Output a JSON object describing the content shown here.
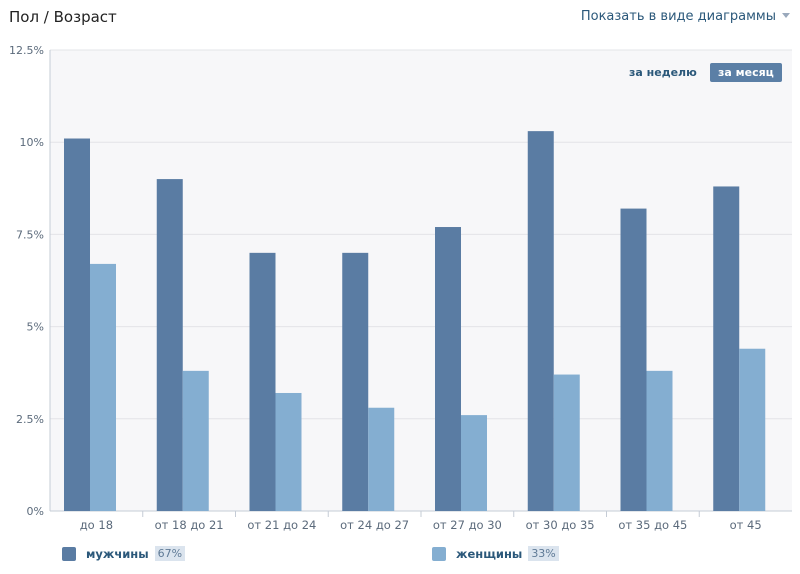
{
  "header": {
    "title": "Пол / Возраст",
    "view_toggle": "Показать в виде диаграммы"
  },
  "period": {
    "week": "за неделю",
    "month": "за месяц",
    "selected": "month"
  },
  "legend": {
    "men": {
      "label": "мужчины",
      "percent": "67%"
    },
    "women": {
      "label": "женщины",
      "percent": "33%"
    }
  },
  "colors": {
    "men": "#5a7ca3",
    "women": "#84aed1",
    "plot_bg": "#f7f7f9",
    "grid": "#e3e4e8",
    "tick": "#5b6a7b"
  },
  "chart_data": {
    "type": "bar",
    "categories": [
      "до 18",
      "от 18 до 21",
      "от 21 до 24",
      "от 24 до 27",
      "от 27 до 30",
      "от 30 до 35",
      "от 35 до 45",
      "от 45"
    ],
    "series": [
      {
        "name": "мужчины",
        "values": [
          10.1,
          9.0,
          7.0,
          7.0,
          7.7,
          10.3,
          8.2,
          8.8
        ]
      },
      {
        "name": "женщины",
        "values": [
          6.7,
          3.8,
          3.2,
          2.8,
          2.6,
          3.7,
          3.8,
          4.4
        ]
      }
    ],
    "y_ticks": [
      {
        "value": 0,
        "label": "0%"
      },
      {
        "value": 2.5,
        "label": "2.5%"
      },
      {
        "value": 5,
        "label": "5%"
      },
      {
        "value": 7.5,
        "label": "7.5%"
      },
      {
        "value": 10,
        "label": "10%"
      },
      {
        "value": 12.5,
        "label": "12.5%"
      }
    ],
    "ylim": [
      0,
      12.5
    ],
    "grid": true,
    "title": "",
    "xlabel": "",
    "ylabel": ""
  }
}
